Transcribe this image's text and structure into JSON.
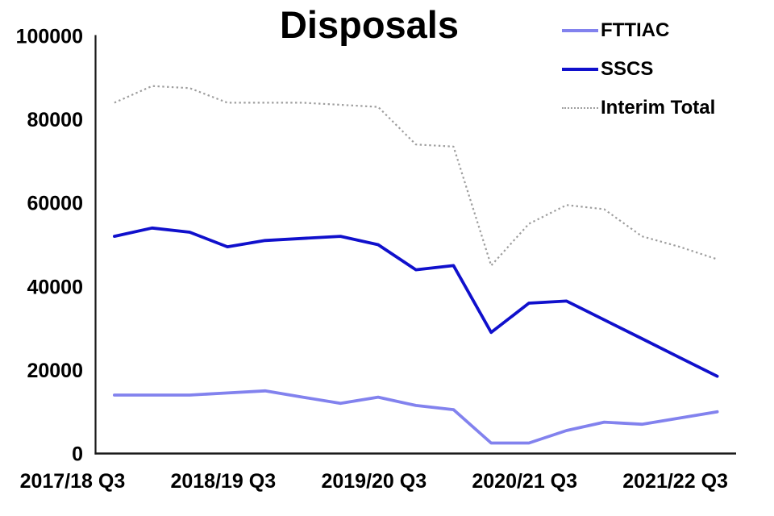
{
  "chart_data": {
    "type": "line",
    "title": "Disposals",
    "n_points": 17,
    "x_tick_labels": [
      "2017/18 Q3",
      "2018/19 Q3",
      "2019/20 Q3",
      "2020/21 Q3",
      "2021/22 Q3"
    ],
    "x_label_every": 4,
    "ylim": [
      0,
      100000
    ],
    "yticks": [
      0,
      20000,
      40000,
      60000,
      80000,
      100000
    ],
    "grid": false,
    "legend_position": "top-right",
    "axis_color": "#1a1a1a",
    "series": [
      {
        "name": "FTTIAC",
        "color": "#8282EE",
        "style": "solid",
        "values": [
          14000,
          14000,
          14000,
          14500,
          15000,
          13500,
          12000,
          13500,
          11500,
          10500,
          2500,
          2500,
          5500,
          7500,
          7000,
          8500,
          10000
        ]
      },
      {
        "name": "SSCS",
        "color": "#1010CC",
        "style": "solid",
        "values": [
          52000,
          54000,
          53000,
          49500,
          51000,
          51500,
          52000,
          50000,
          44000,
          45000,
          29000,
          36000,
          36500,
          32000,
          27500,
          23000,
          18500
        ]
      },
      {
        "name": "Interim Total",
        "color": "#9E9E9E",
        "style": "dotted",
        "values": [
          84000,
          88000,
          87500,
          84000,
          84000,
          84000,
          83500,
          83000,
          74000,
          73500,
          45000,
          55000,
          59500,
          58500,
          52000,
          49500,
          46500
        ]
      }
    ]
  }
}
